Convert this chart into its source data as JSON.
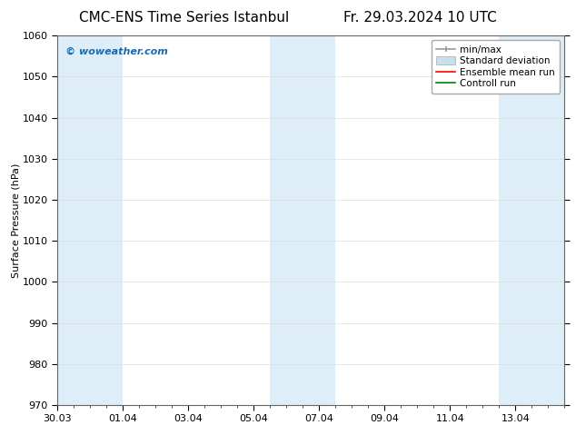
{
  "title_left": "CMC-ENS Time Series Istanbul",
  "title_right": "Fr. 29.03.2024 10 UTC",
  "ylabel": "Surface Pressure (hPa)",
  "ylim": [
    970,
    1060
  ],
  "yticks": [
    970,
    980,
    990,
    1000,
    1010,
    1020,
    1030,
    1040,
    1050,
    1060
  ],
  "xlim": [
    0,
    15.5
  ],
  "x_tick_labels": [
    "30.03",
    "01.04",
    "03.04",
    "05.04",
    "07.04",
    "09.04",
    "11.04",
    "13.04"
  ],
  "x_tick_positions": [
    0,
    2,
    4,
    6,
    8,
    10,
    12,
    14
  ],
  "shaded_bands": [
    {
      "x_start": 0.0,
      "x_end": 2.0
    },
    {
      "x_start": 6.5,
      "x_end": 8.5
    },
    {
      "x_start": 13.5,
      "x_end": 15.5
    }
  ],
  "band_color": "#ddeef8",
  "watermark_text": "© woweather.com",
  "watermark_color": "#1a6aad",
  "legend_items": [
    {
      "label": "min/max",
      "color": "#aaaaaa",
      "type": "errorbar"
    },
    {
      "label": "Standard deviation",
      "color": "#c8dff0",
      "type": "bar"
    },
    {
      "label": "Ensemble mean run",
      "color": "red",
      "type": "line"
    },
    {
      "label": "Controll run",
      "color": "green",
      "type": "line"
    }
  ],
  "bg_color": "#ffffff",
  "grid_color": "#dddddd",
  "font_size_title": 11,
  "font_size_axis": 8,
  "font_size_legend": 7.5,
  "font_size_watermark": 8
}
